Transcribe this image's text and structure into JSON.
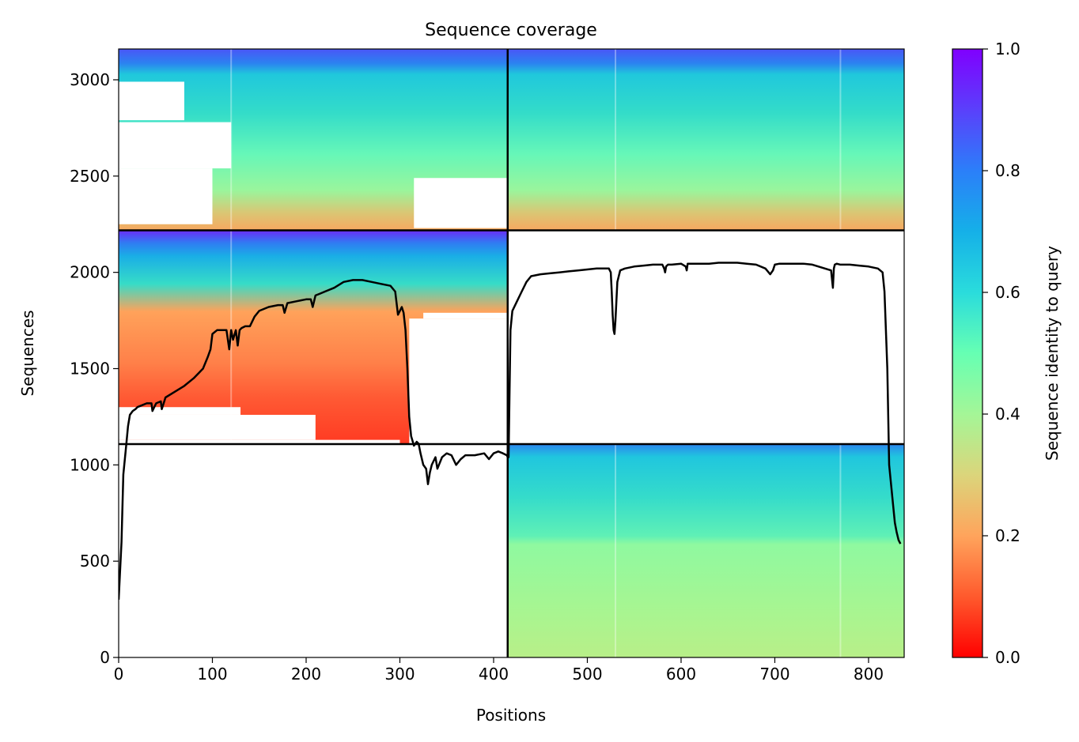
{
  "chart_data": {
    "type": "heatmap",
    "title": "Sequence coverage",
    "xlabel": "Positions",
    "ylabel": "Sequences",
    "xlim": [
      0,
      838
    ],
    "ylim": [
      0,
      3160
    ],
    "xticks": [
      0,
      100,
      200,
      300,
      400,
      500,
      600,
      700,
      800
    ],
    "yticks": [
      0,
      500,
      1000,
      1500,
      2000,
      2500,
      3000
    ],
    "colorbar": {
      "label": "Sequence identity to query",
      "range": [
        0,
        1
      ],
      "ticks": [
        "0.0",
        "0.2",
        "0.4",
        "0.6",
        "0.8",
        "1.0"
      ],
      "colormap": "rainbow_r"
    },
    "chain_boundaries": {
      "positions": [
        415
      ],
      "sequences": [
        1108,
        2218
      ]
    },
    "blocks": [
      {
        "name": "both-chains",
        "x": [
          0,
          838
        ],
        "y": [
          2218,
          3160
        ]
      },
      {
        "name": "chain-1-only",
        "x": [
          0,
          415
        ],
        "y": [
          1108,
          2218
        ]
      },
      {
        "name": "chain-2-only",
        "x": [
          415,
          838
        ],
        "y": [
          0,
          1108
        ]
      }
    ],
    "coverage_line": {
      "name": "coverage",
      "color": "#000000",
      "x": [
        0,
        3,
        5,
        8,
        10,
        12,
        15,
        18,
        20,
        25,
        30,
        35,
        36,
        38,
        40,
        45,
        46,
        48,
        50,
        60,
        70,
        80,
        90,
        95,
        98,
        100,
        105,
        110,
        115,
        118,
        120,
        122,
        125,
        127,
        129,
        131,
        135,
        140,
        145,
        150,
        160,
        170,
        175,
        177,
        180,
        190,
        200,
        205,
        207,
        210,
        215,
        220,
        230,
        240,
        250,
        260,
        270,
        280,
        290,
        295,
        298,
        300,
        302,
        304,
        306,
        308,
        310,
        312,
        315,
        318,
        320,
        322,
        325,
        328,
        330,
        332,
        334,
        336,
        338,
        340,
        345,
        350,
        355,
        360,
        365,
        370,
        380,
        390,
        395,
        400,
        405,
        410,
        414,
        415,
        416,
        418,
        420,
        425,
        430,
        435,
        440,
        450,
        460,
        470,
        480,
        490,
        500,
        510,
        520,
        523,
        525,
        526,
        527,
        528,
        529,
        530,
        532,
        535,
        540,
        550,
        560,
        570,
        580,
        582,
        583,
        584,
        586,
        590,
        600,
        605,
        606,
        607,
        610,
        620,
        630,
        640,
        650,
        660,
        670,
        680,
        690,
        695,
        698,
        700,
        705,
        710,
        720,
        730,
        740,
        760,
        762,
        763,
        764,
        766,
        770,
        780,
        790,
        800,
        810,
        815,
        817,
        820,
        822,
        824,
        826,
        828,
        830,
        832,
        834,
        836,
        838
      ],
      "y": [
        300,
        600,
        950,
        1100,
        1200,
        1260,
        1280,
        1290,
        1300,
        1310,
        1320,
        1320,
        1280,
        1300,
        1320,
        1330,
        1290,
        1320,
        1350,
        1380,
        1410,
        1450,
        1500,
        1560,
        1600,
        1680,
        1700,
        1700,
        1700,
        1600,
        1700,
        1650,
        1700,
        1620,
        1700,
        1710,
        1720,
        1720,
        1770,
        1800,
        1820,
        1830,
        1830,
        1790,
        1840,
        1850,
        1860,
        1860,
        1820,
        1880,
        1890,
        1900,
        1920,
        1950,
        1960,
        1960,
        1950,
        1940,
        1930,
        1900,
        1780,
        1800,
        1820,
        1790,
        1700,
        1500,
        1250,
        1150,
        1100,
        1120,
        1110,
        1060,
        1000,
        980,
        900,
        960,
        1000,
        1020,
        1040,
        980,
        1040,
        1060,
        1050,
        1000,
        1030,
        1050,
        1050,
        1060,
        1030,
        1060,
        1070,
        1060,
        1050,
        1040,
        1040,
        1700,
        1800,
        1850,
        1900,
        1950,
        1980,
        1990,
        1995,
        2000,
        2005,
        2010,
        2015,
        2020,
        2020,
        2020,
        2000,
        1900,
        1780,
        1700,
        1680,
        1750,
        1950,
        2010,
        2020,
        2030,
        2035,
        2040,
        2040,
        2020,
        2000,
        2030,
        2040,
        2040,
        2045,
        2030,
        2010,
        2045,
        2045,
        2045,
        2045,
        2050,
        2050,
        2050,
        2045,
        2040,
        2020,
        1990,
        2010,
        2040,
        2045,
        2045,
        2045,
        2045,
        2040,
        2010,
        1920,
        2020,
        2040,
        2045,
        2040,
        2040,
        2035,
        2030,
        2020,
        2000,
        1900,
        1500,
        1000,
        900,
        800,
        700,
        650,
        610,
        590
      ]
    }
  }
}
